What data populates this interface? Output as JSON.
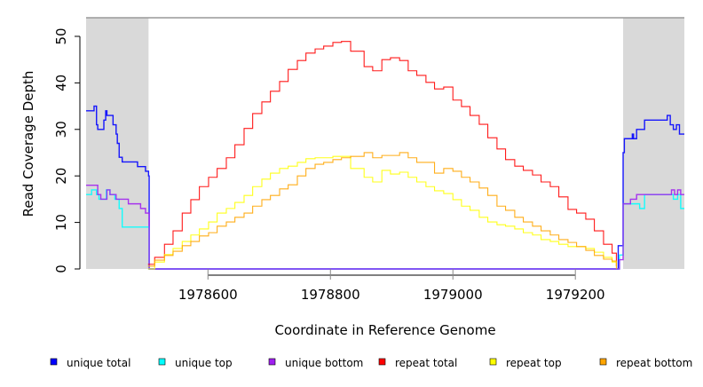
{
  "chart_data": {
    "type": "line",
    "title": "",
    "xlabel": "Coordinate in Reference Genome",
    "ylabel": "Read Coverage Depth",
    "xlim": [
      1978401,
      1979378
    ],
    "ylim": [
      0,
      54
    ],
    "xticks": [
      1978600,
      1978800,
      1979000,
      1979200
    ],
    "xtick_labels": [
      "1978600",
      "1978800",
      "1979000",
      "1979200"
    ],
    "yticks": [
      0,
      10,
      20,
      30,
      40,
      50
    ],
    "ytick_labels": [
      "0",
      "10",
      "20",
      "30",
      "40",
      "50"
    ],
    "shaded_regions": [
      [
        1978401,
        1978503
      ],
      [
        1979278,
        1979378
      ]
    ],
    "shade_color": "#d9d9d9",
    "legend_position": "bottom",
    "grid": false,
    "series": [
      {
        "name": "unique total",
        "color": "#0000ff",
        "x": [
          1978401,
          1978414,
          1978418,
          1978420,
          1978424,
          1978430,
          1978433,
          1978435,
          1978445,
          1978450,
          1978452,
          1978455,
          1978460,
          1978475,
          1978485,
          1978490,
          1978498,
          1978503,
          1978504,
          1979265,
          1979270,
          1979276,
          1979278,
          1979280,
          1979290,
          1979293,
          1979295,
          1979300,
          1979313,
          1979350,
          1979355,
          1979360,
          1979365,
          1979370,
          1979378
        ],
        "y": [
          34,
          35,
          31,
          30,
          30,
          32,
          34,
          33,
          31,
          29,
          27,
          24,
          23,
          23,
          22,
          22,
          21,
          20,
          0,
          0,
          5,
          5,
          25,
          28,
          28,
          29,
          28,
          30,
          32,
          33,
          31,
          30,
          31,
          29,
          29
        ]
      },
      {
        "name": "unique top",
        "color": "#00ffff",
        "x": [
          1978401,
          1978410,
          1978418,
          1978422,
          1978430,
          1978434,
          1978440,
          1978448,
          1978455,
          1978460,
          1978503,
          1978504,
          1979268,
          1979272,
          1979278,
          1979300,
          1979305,
          1979313,
          1979355,
          1979360,
          1979367,
          1979372,
          1979378
        ],
        "y": [
          16,
          17,
          16,
          15,
          15,
          17,
          16,
          15,
          13,
          9,
          9,
          0,
          0,
          3,
          14,
          14,
          13,
          16,
          16,
          15,
          16,
          13,
          13
        ]
      },
      {
        "name": "unique bottom",
        "color": "#a020f0",
        "x": [
          1978401,
          1978418,
          1978420,
          1978425,
          1978430,
          1978435,
          1978440,
          1978450,
          1978470,
          1978490,
          1978498,
          1978503,
          1978504,
          1979268,
          1979272,
          1979278,
          1979290,
          1979300,
          1979352,
          1979357,
          1979362,
          1979367,
          1979372,
          1979378
        ],
        "y": [
          18,
          18,
          16,
          15,
          15,
          17,
          16,
          15,
          14,
          13,
          12,
          12,
          0,
          0,
          2,
          14,
          15,
          16,
          16,
          17,
          16,
          17,
          16,
          16
        ]
      },
      {
        "name": "repeat total",
        "color": "#ff0000",
        "x": [
          1978502,
          1978513,
          1978529,
          1978543,
          1978558,
          1978572,
          1978586,
          1978601,
          1978615,
          1978630,
          1978644,
          1978659,
          1978673,
          1978688,
          1978702,
          1978717,
          1978731,
          1978746,
          1978760,
          1978775,
          1978789,
          1978804,
          1978818,
          1978833,
          1978855,
          1978869,
          1978884,
          1978898,
          1978913,
          1978927,
          1978941,
          1978956,
          1978970,
          1978985,
          1979000,
          1979014,
          1979028,
          1979043,
          1979057,
          1979072,
          1979086,
          1979101,
          1979115,
          1979130,
          1979144,
          1979159,
          1979173,
          1979188,
          1979202,
          1979217,
          1979231,
          1979246,
          1979260,
          1979267
        ],
        "y": [
          1.0,
          2.5,
          5.3,
          8.2,
          12.0,
          14.9,
          17.7,
          19.7,
          21.6,
          23.9,
          26.7,
          30.2,
          33.4,
          35.9,
          38.2,
          40.3,
          42.9,
          44.8,
          46.4,
          47.3,
          47.9,
          48.7,
          48.9,
          46.8,
          43.5,
          42.6,
          45.0,
          45.4,
          44.8,
          42.6,
          41.6,
          40.1,
          38.7,
          39.1,
          36.3,
          34.9,
          33.0,
          31.1,
          28.2,
          25.8,
          23.5,
          22.1,
          21.2,
          20.2,
          18.7,
          17.7,
          15.5,
          12.8,
          12.0,
          10.7,
          8.2,
          5.3,
          3.4,
          0.6
        ]
      },
      {
        "name": "repeat top",
        "color": "#ffff00",
        "x": [
          1978502,
          1978513,
          1978529,
          1978543,
          1978558,
          1978572,
          1978586,
          1978601,
          1978615,
          1978630,
          1978644,
          1978659,
          1978673,
          1978688,
          1978702,
          1978717,
          1978731,
          1978746,
          1978760,
          1978775,
          1978789,
          1978804,
          1978818,
          1978833,
          1978855,
          1978869,
          1978884,
          1978898,
          1978913,
          1978927,
          1978941,
          1978956,
          1978970,
          1978985,
          1979000,
          1979014,
          1979028,
          1979043,
          1979057,
          1979072,
          1979086,
          1979101,
          1979115,
          1979130,
          1979144,
          1979159,
          1979173,
          1979188,
          1979202,
          1979217,
          1979231,
          1979246,
          1979260,
          1979267
        ],
        "y": [
          0,
          1.5,
          3.1,
          4.4,
          5.9,
          7.3,
          8.6,
          10.1,
          12.0,
          13.0,
          14.3,
          15.8,
          17.7,
          19.3,
          20.6,
          21.6,
          22.1,
          22.9,
          23.7,
          23.9,
          23.9,
          24.2,
          24.2,
          21.6,
          19.7,
          18.7,
          21.2,
          20.4,
          20.8,
          19.7,
          18.7,
          17.7,
          16.8,
          16.2,
          14.9,
          13.5,
          12.6,
          11.1,
          10.1,
          9.5,
          9.2,
          8.6,
          7.8,
          7.3,
          6.3,
          5.9,
          5.3,
          4.8,
          4.8,
          4.4,
          3.6,
          2.5,
          1.5,
          0.6
        ]
      },
      {
        "name": "repeat bottom",
        "color": "#ffa500",
        "x": [
          1978502,
          1978513,
          1978529,
          1978543,
          1978558,
          1978572,
          1978586,
          1978601,
          1978615,
          1978630,
          1978644,
          1978659,
          1978673,
          1978688,
          1978702,
          1978717,
          1978731,
          1978746,
          1978760,
          1978775,
          1978789,
          1978804,
          1978818,
          1978833,
          1978855,
          1978869,
          1978884,
          1978898,
          1978913,
          1978927,
          1978941,
          1978956,
          1978970,
          1978985,
          1979000,
          1979014,
          1979028,
          1979043,
          1979057,
          1979072,
          1979086,
          1979101,
          1979115,
          1979130,
          1979144,
          1979159,
          1979173,
          1979188,
          1979202,
          1979217,
          1979231,
          1979246,
          1979260,
          1979267
        ],
        "y": [
          0.6,
          1.9,
          2.9,
          3.8,
          5.0,
          5.9,
          7.1,
          7.8,
          9.2,
          10.1,
          11.1,
          12.0,
          13.5,
          14.9,
          15.8,
          17.2,
          18.1,
          20.0,
          21.6,
          22.5,
          22.9,
          23.5,
          23.9,
          24.2,
          25.0,
          23.9,
          24.4,
          24.4,
          25.0,
          23.9,
          22.9,
          22.9,
          20.6,
          21.6,
          21.0,
          19.7,
          18.7,
          17.4,
          15.8,
          13.5,
          12.6,
          11.1,
          10.1,
          9.2,
          8.2,
          7.3,
          6.3,
          5.7,
          4.8,
          4.0,
          2.9,
          2.1,
          1.7,
          0
        ]
      }
    ]
  }
}
